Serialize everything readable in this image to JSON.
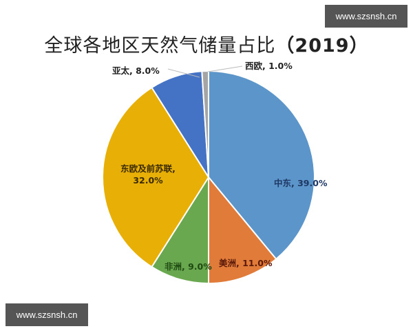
{
  "title": "全球各地区天然气储量占比",
  "title_year": "（2019）",
  "watermarks": [
    "www.szsnsh.cn",
    "www.szsnsh.cn"
  ],
  "chart_data": {
    "type": "pie",
    "title": "全球各地区天然气储量占比（2019）",
    "categories": [
      "中东",
      "美洲",
      "非洲",
      "东欧及前苏联",
      "亚太",
      "西欧"
    ],
    "values": [
      39.0,
      11.0,
      9.0,
      32.0,
      8.0,
      1.0
    ],
    "unit": "%",
    "colors": [
      "#5b95c9",
      "#e07b39",
      "#6aa84f",
      "#e8b007",
      "#4472c4",
      "#a5a5a5"
    ],
    "label_colors": [
      "#1f3864",
      "#5b1a0a",
      "#1e4a12",
      "#3a2a00",
      "#222222",
      "#222222"
    ],
    "labels": [
      "中东, 39.0%",
      "美洲, 11.0%",
      "非洲, 9.0%",
      "东欧及前苏联, 32.0%",
      "亚太, 8.0%",
      "西欧, 1.0%"
    ],
    "start_angle": 0,
    "direction": "clockwise",
    "legend": "none"
  }
}
